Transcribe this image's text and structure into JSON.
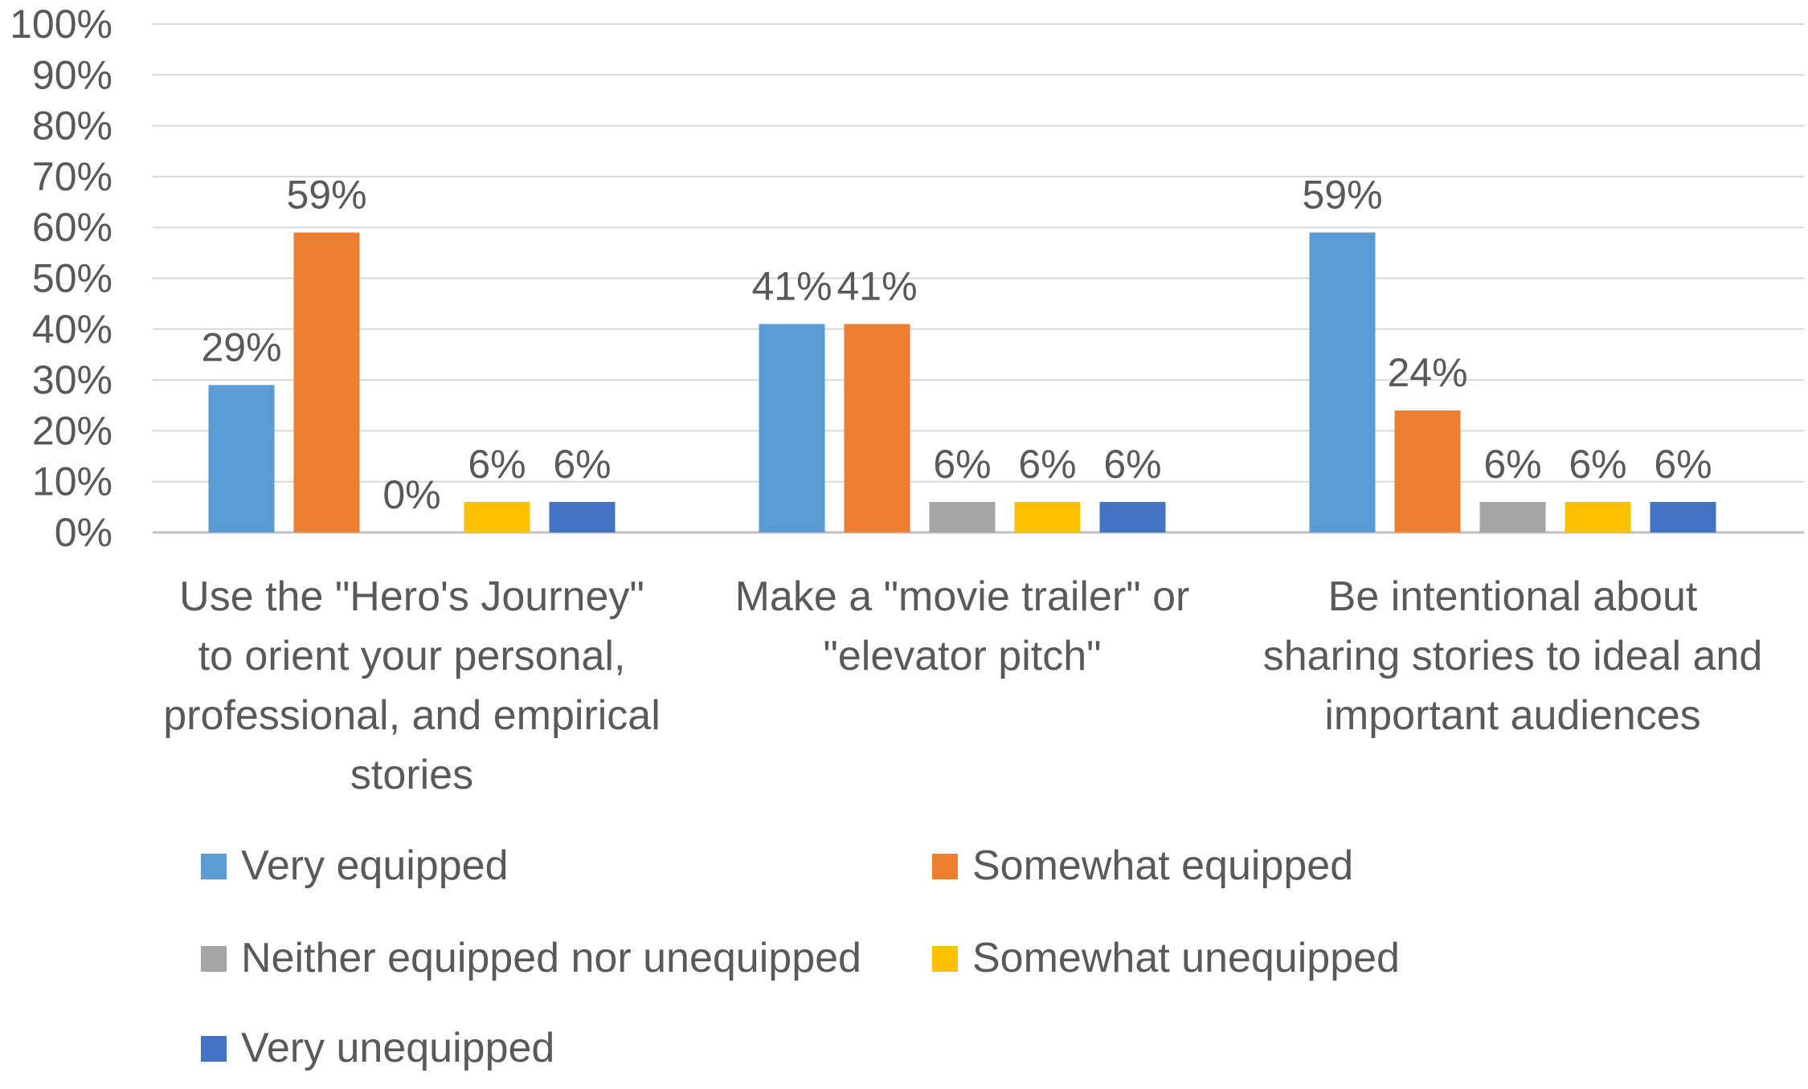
{
  "chart_data": {
    "type": "bar",
    "title": "",
    "xlabel": "",
    "ylabel": "",
    "ylim": [
      0,
      100
    ],
    "yticks": [
      "0%",
      "10%",
      "20%",
      "30%",
      "40%",
      "50%",
      "60%",
      "70%",
      "80%",
      "90%",
      "100%"
    ],
    "grid": true,
    "legend_position": "bottom",
    "categories": [
      [
        "Use the \"Hero's Journey\"",
        "to orient your personal,",
        "professional, and empirical",
        "stories"
      ],
      [
        "Make a \"movie trailer\" or",
        "\"elevator pitch\""
      ],
      [
        "Be intentional about",
        "sharing stories to ideal and",
        "important audiences"
      ]
    ],
    "series": [
      {
        "name": "Very equipped",
        "color": "#5B9BD5",
        "values": [
          29,
          41,
          59
        ],
        "labels": [
          "29%",
          "41%",
          "59%"
        ]
      },
      {
        "name": "Somewhat equipped",
        "color": "#ED7D31",
        "values": [
          59,
          41,
          24
        ],
        "labels": [
          "59%",
          "41%",
          "24%"
        ]
      },
      {
        "name": "Neither equipped nor unequipped",
        "color": "#A5A5A5",
        "values": [
          0,
          6,
          6
        ],
        "labels": [
          "0%",
          "6%",
          "6%"
        ]
      },
      {
        "name": "Somewhat unequipped",
        "color": "#FFC000",
        "values": [
          6,
          6,
          6
        ],
        "labels": [
          "6%",
          "6%",
          "6%"
        ]
      },
      {
        "name": "Very unequipped",
        "color": "#4472C4",
        "values": [
          6,
          6,
          6
        ],
        "labels": [
          "6%",
          "6%",
          "6%"
        ]
      }
    ]
  }
}
